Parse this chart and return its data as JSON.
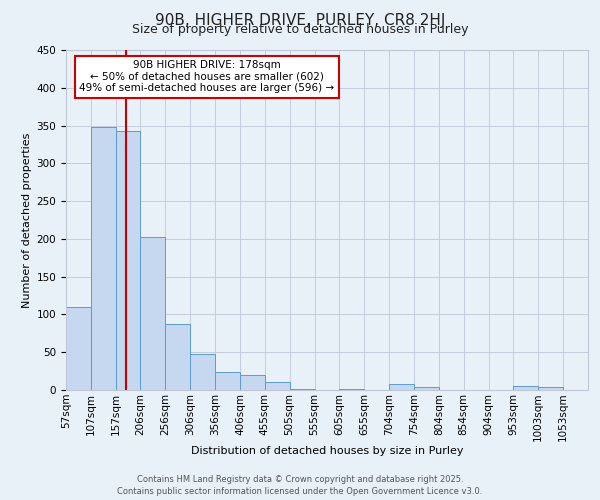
{
  "title": "90B, HIGHER DRIVE, PURLEY, CR8 2HJ",
  "subtitle": "Size of property relative to detached houses in Purley",
  "xlabel": "Distribution of detached houses by size in Purley",
  "ylabel": "Number of detached properties",
  "bar_color": "#c5d8f0",
  "bar_edge_color": "#5b9bd5",
  "bar_left_edges": [
    57,
    107,
    157,
    206,
    256,
    306,
    356,
    406,
    455,
    505,
    555,
    605,
    655,
    704,
    754,
    804,
    854,
    904,
    953,
    1003
  ],
  "bar_widths": [
    50,
    50,
    49,
    50,
    50,
    50,
    50,
    49,
    50,
    50,
    50,
    50,
    49,
    50,
    50,
    50,
    50,
    49,
    50,
    50
  ],
  "bar_heights": [
    110,
    348,
    343,
    203,
    87,
    47,
    24,
    20,
    10,
    1,
    0,
    1,
    0,
    8,
    4,
    0,
    0,
    0,
    5,
    4
  ],
  "ylim": [
    0,
    450
  ],
  "yticks": [
    0,
    50,
    100,
    150,
    200,
    250,
    300,
    350,
    400,
    450
  ],
  "vline_x": 178,
  "vline_color": "#cc0000",
  "annotation_box_text": "90B HIGHER DRIVE: 178sqm\n← 50% of detached houses are smaller (602)\n49% of semi-detached houses are larger (596) →",
  "annotation_box_color": "#ffffff",
  "annotation_box_edge_color": "#cc0000",
  "bg_color": "#e8f0f8",
  "footer_line1": "Contains HM Land Registry data © Crown copyright and database right 2025.",
  "footer_line2": "Contains public sector information licensed under the Open Government Licence v3.0.",
  "grid_color": "#c0c8d8",
  "title_fontsize": 11,
  "subtitle_fontsize": 9,
  "axis_label_fontsize": 8,
  "tick_fontsize": 7.5,
  "footer_fontsize": 6,
  "tick_labels": [
    "57sqm",
    "107sqm",
    "157sqm",
    "206sqm",
    "256sqm",
    "306sqm",
    "356sqm",
    "406sqm",
    "455sqm",
    "505sqm",
    "555sqm",
    "605sqm",
    "655sqm",
    "704sqm",
    "754sqm",
    "804sqm",
    "854sqm",
    "904sqm",
    "953sqm",
    "1003sqm",
    "1053sqm"
  ]
}
